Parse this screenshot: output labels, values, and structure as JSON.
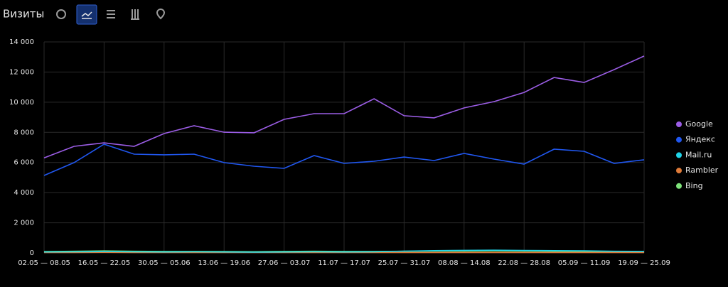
{
  "chart_data": {
    "type": "line",
    "title": "Визиты",
    "categories": [
      "02.05 — 08.05",
      null,
      "16.05 — 22.05",
      null,
      "30.05 — 05.06",
      null,
      "13.06 — 19.06",
      null,
      "27.06 — 03.07",
      null,
      "11.07 — 17.07",
      null,
      "25.07 — 31.07",
      null,
      "08.08 — 14.08",
      null,
      "22.08 — 28.08",
      null,
      "05.09 — 11.09",
      null,
      "19.09 — 25.09"
    ],
    "series": [
      {
        "name": "Google",
        "color": "#9b5de5",
        "values": [
          6300,
          7070,
          7300,
          7070,
          7920,
          8440,
          8010,
          7970,
          8860,
          9240,
          9240,
          10230,
          9100,
          8960,
          9620,
          10040,
          10650,
          11640,
          11310,
          12160,
          13060
        ]
      },
      {
        "name": "Яндекс",
        "color": "#2057f0",
        "values": [
          5140,
          5990,
          7210,
          6550,
          6510,
          6550,
          5990,
          5750,
          5610,
          6460,
          5940,
          6080,
          6360,
          6130,
          6600,
          6220,
          5890,
          6880,
          6740,
          5940,
          6180
        ]
      },
      {
        "name": "Mail.ru",
        "color": "#1fd3e8",
        "values": [
          60,
          70,
          90,
          70,
          60,
          70,
          60,
          50,
          60,
          70,
          60,
          70,
          120,
          150,
          170,
          180,
          160,
          150,
          140,
          110,
          100
        ]
      },
      {
        "name": "Rambler",
        "color": "#e07b39",
        "values": [
          30,
          30,
          40,
          30,
          30,
          30,
          30,
          30,
          30,
          30,
          30,
          30,
          30,
          30,
          30,
          30,
          30,
          30,
          30,
          30,
          30
        ]
      },
      {
        "name": "Bing",
        "color": "#7ee37a",
        "values": [
          90,
          110,
          130,
          110,
          100,
          100,
          90,
          80,
          100,
          110,
          100,
          100,
          110,
          120,
          120,
          130,
          120,
          110,
          100,
          90,
          80
        ]
      }
    ],
    "ylim": [
      0,
      14000
    ],
    "yticks": [
      0,
      {
        "value": 2000,
        "label": "2 000"
      },
      {
        "value": 4000,
        "label": "4 000"
      },
      {
        "value": 6000,
        "label": "6 000"
      },
      {
        "value": 8000,
        "label": "8 000"
      },
      {
        "value": 10000,
        "label": "10 000"
      },
      {
        "value": 12000,
        "label": "12 000"
      },
      {
        "value": 14000,
        "label": "14 000"
      }
    ],
    "grid": true
  }
}
